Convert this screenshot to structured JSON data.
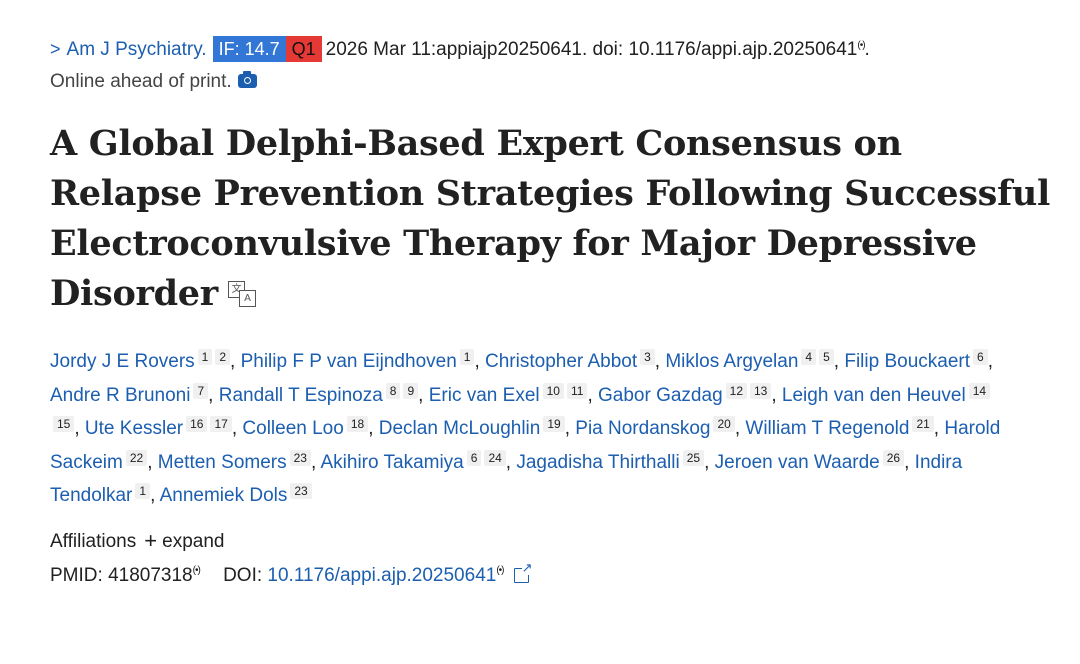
{
  "citation": {
    "chevron": ">",
    "journal": "Am J Psychiatry.",
    "impact_factor_badge": "IF: 14.7",
    "quartile_badge": "Q1",
    "details": "2026 Mar 11:appiajp20250641. doi: 10.1176/appi.ajp.20250641",
    "radio_glyph": "(•)",
    "trailing": ".",
    "status": "Online ahead of print.",
    "badge_colors": {
      "impact_factor": "#3277d6",
      "quartile": "#e53935"
    },
    "icons": [
      "chevron-right-icon",
      "radio-signal-icon",
      "camera-icon"
    ]
  },
  "article": {
    "title": "A Global Delphi-Based Expert Consensus on Relapse Prevention Strategies Following Successful Electroconvulsive Therapy for Major Depressive Disorder",
    "translate_icon_text": [
      "文",
      "A"
    ]
  },
  "authors": [
    {
      "name": "Jordy J E Rovers",
      "affiliations": [
        "1",
        "2"
      ]
    },
    {
      "name": "Philip F P van Eijndhoven",
      "affiliations": [
        "1"
      ]
    },
    {
      "name": "Christopher Abbot",
      "affiliations": [
        "3"
      ]
    },
    {
      "name": "Miklos Argyelan",
      "affiliations": [
        "4",
        "5"
      ]
    },
    {
      "name": "Filip Bouckaert",
      "affiliations": [
        "6"
      ]
    },
    {
      "name": "Andre R Brunoni",
      "affiliations": [
        "7"
      ]
    },
    {
      "name": "Randall T Espinoza",
      "affiliations": [
        "8",
        "9"
      ]
    },
    {
      "name": "Eric van Exel",
      "affiliations": [
        "10",
        "11"
      ]
    },
    {
      "name": "Gabor Gazdag",
      "affiliations": [
        "12",
        "13"
      ]
    },
    {
      "name": "Leigh van den Heuvel",
      "affiliations": [
        "14",
        "15"
      ]
    },
    {
      "name": "Ute Kessler",
      "affiliations": [
        "16",
        "17"
      ]
    },
    {
      "name": "Colleen Loo",
      "affiliations": [
        "18"
      ]
    },
    {
      "name": "Declan McLoughlin",
      "affiliations": [
        "19"
      ]
    },
    {
      "name": "Pia Nordanskog",
      "affiliations": [
        "20"
      ]
    },
    {
      "name": "William T Regenold",
      "affiliations": [
        "21"
      ]
    },
    {
      "name": "Harold Sackeim",
      "affiliations": [
        "22"
      ]
    },
    {
      "name": "Metten Somers",
      "affiliations": [
        "23"
      ]
    },
    {
      "name": "Akihiro Takamiya",
      "affiliations": [
        "6",
        "24"
      ]
    },
    {
      "name": "Jagadisha Thirthalli",
      "affiliations": [
        "25"
      ]
    },
    {
      "name": "Jeroen van Waarde",
      "affiliations": [
        "26"
      ]
    },
    {
      "name": "Indira Tendolkar",
      "affiliations": [
        "1"
      ]
    },
    {
      "name": "Annemiek Dols",
      "affiliations": [
        "23"
      ]
    }
  ],
  "affiliations_section": {
    "label": "Affiliations",
    "expand_icon": "+",
    "expand_label": "expand"
  },
  "identifiers": {
    "pmid_label": "PMID:",
    "pmid": "41807318",
    "doi_label": "DOI:",
    "doi": "10.1176/appi.ajp.20250641",
    "icons": [
      "radio-signal-icon",
      "external-link-icon"
    ]
  }
}
